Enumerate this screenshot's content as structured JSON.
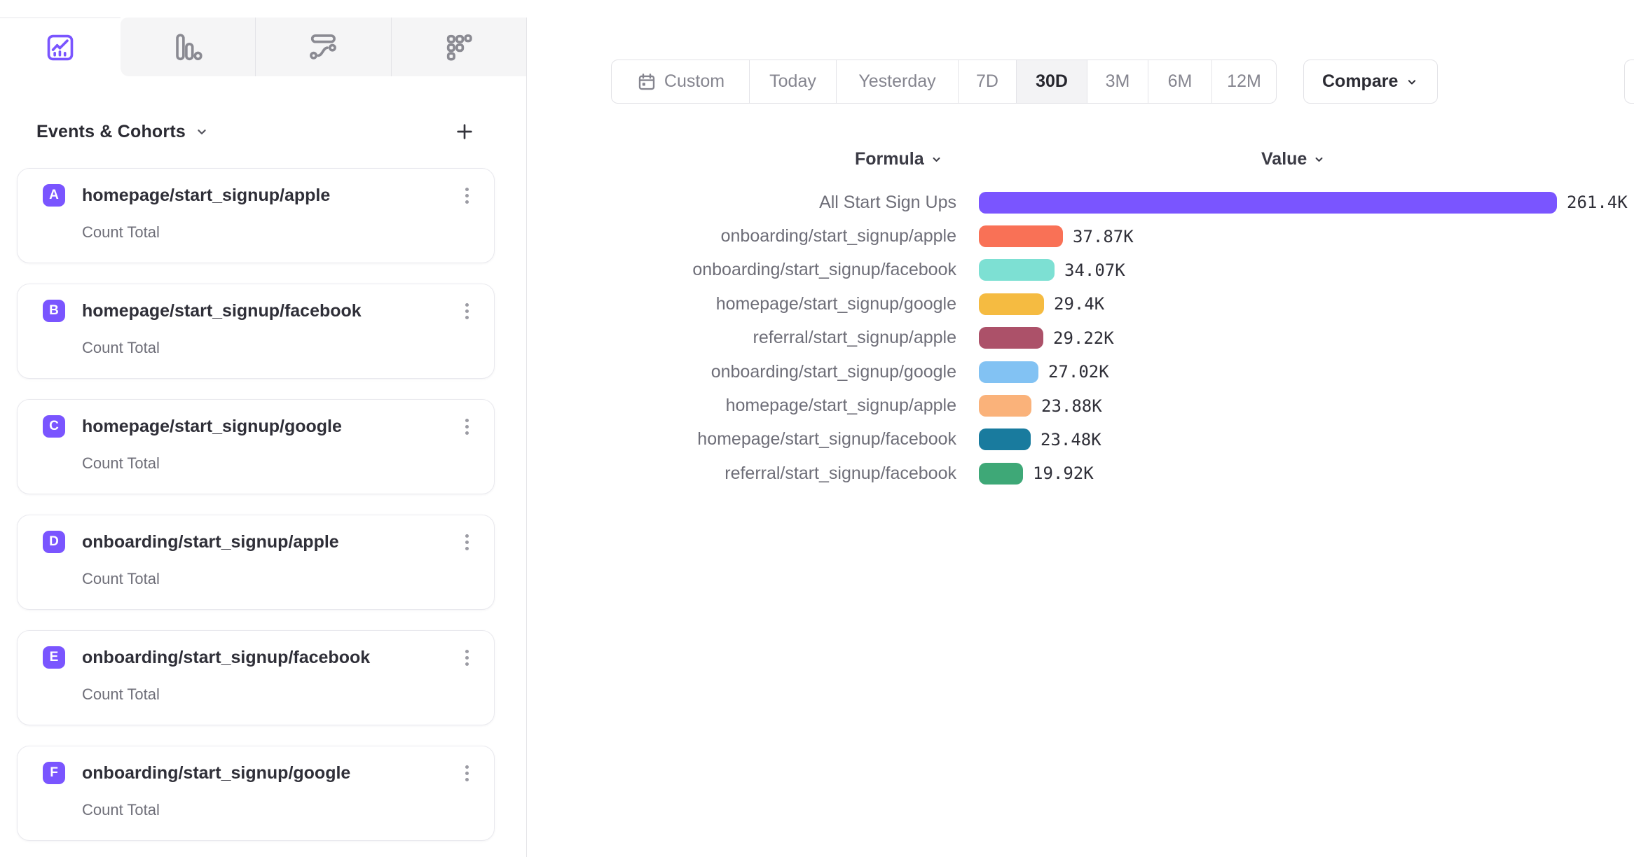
{
  "tabs": {
    "items": [
      {
        "icon": "insights-line-chart-icon",
        "active": true
      },
      {
        "icon": "bar-chart-icon",
        "active": false
      },
      {
        "icon": "flows-icon",
        "active": false
      },
      {
        "icon": "retention-dots-icon",
        "active": false
      }
    ],
    "active_color": "#7a55ff",
    "inactive_color": "#8a8a92"
  },
  "sidebar": {
    "title": "Events & Cohorts",
    "badge_color": "#7a55ff",
    "events": [
      {
        "letter": "A",
        "name": "homepage/start_signup/apple",
        "metric": "Count Total"
      },
      {
        "letter": "B",
        "name": "homepage/start_signup/facebook",
        "metric": "Count Total"
      },
      {
        "letter": "C",
        "name": "homepage/start_signup/google",
        "metric": "Count Total"
      },
      {
        "letter": "D",
        "name": "onboarding/start_signup/apple",
        "metric": "Count Total"
      },
      {
        "letter": "E",
        "name": "onboarding/start_signup/facebook",
        "metric": "Count Total"
      },
      {
        "letter": "F",
        "name": "onboarding/start_signup/google",
        "metric": "Count Total"
      }
    ]
  },
  "toolbar": {
    "date_ranges": [
      "Custom",
      "Today",
      "Yesterday",
      "7D",
      "30D",
      "3M",
      "6M",
      "12M"
    ],
    "active_range": "30D",
    "compare_label": "Compare"
  },
  "chart_data": {
    "type": "bar",
    "orientation": "horizontal",
    "column_headers": [
      "Formula",
      "Value"
    ],
    "categories": [
      "All Start Sign Ups",
      "onboarding/start_signup/apple",
      "onboarding/start_signup/facebook",
      "homepage/start_signup/google",
      "referral/start_signup/apple",
      "onboarding/start_signup/google",
      "homepage/start_signup/apple",
      "homepage/start_signup/facebook",
      "referral/start_signup/facebook"
    ],
    "values": [
      261.4,
      37.87,
      34.07,
      29.4,
      29.22,
      27.02,
      23.88,
      23.48,
      19.92
    ],
    "value_labels": [
      "261.4K",
      "37.87K",
      "34.07K",
      "29.4K",
      "29.22K",
      "27.02K",
      "23.88K",
      "23.48K",
      "19.92K"
    ],
    "colors": [
      "#7a55ff",
      "#f97156",
      "#7de0d3",
      "#f5bb41",
      "#ac5169",
      "#82c2f3",
      "#fab27a",
      "#197b9e",
      "#3ea877"
    ],
    "xlim": [
      0,
      261.4
    ],
    "unit": "K"
  }
}
